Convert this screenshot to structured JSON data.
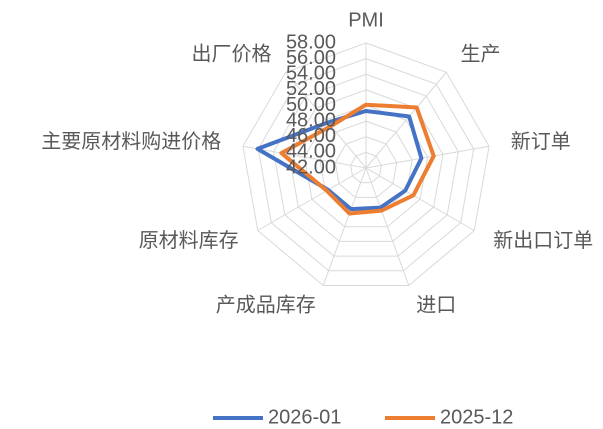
{
  "chart_data": {
    "type": "radar",
    "categories": [
      "PMI",
      "生产",
      "新订单",
      "新出口订单",
      "进口",
      "产成品库存",
      "原材料库存",
      "主要原材料购进价格",
      "出厂价格"
    ],
    "series": [
      {
        "name": "2026-01",
        "color": "#4472c4",
        "values": [
          49.3,
          50.6,
          49.2,
          47.8,
          47.4,
          47.6,
          47.6,
          56.1,
          49.6
        ]
      },
      {
        "name": "2025-12",
        "color": "#ed7d31",
        "values": [
          50.1,
          52.1,
          50.8,
          49.0,
          47.8,
          48.2,
          47.8,
          53.0,
          49.0
        ]
      }
    ],
    "ylim": [
      42,
      58
    ],
    "yticks": [
      {
        "value": 42,
        "label": "42.00"
      },
      {
        "value": 44,
        "label": "44.00"
      },
      {
        "value": 46,
        "label": "46.00"
      },
      {
        "value": 48,
        "label": "48.00"
      },
      {
        "value": 50,
        "label": "50.00"
      },
      {
        "value": 52,
        "label": "52.00"
      },
      {
        "value": 54,
        "label": "54.00"
      },
      {
        "value": 56,
        "label": "56.00"
      },
      {
        "value": 58,
        "label": "58.00"
      }
    ],
    "grid": true,
    "legend": "bottom"
  }
}
